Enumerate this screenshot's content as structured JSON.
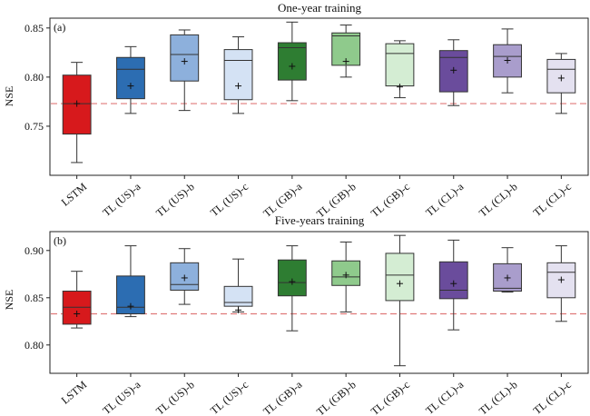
{
  "chart_data": [
    {
      "type": "box",
      "title": "One-year training",
      "panel_label": "(a)",
      "ylabel": "NSE",
      "xlabel": "",
      "ylim": [
        0.7,
        0.86
      ],
      "yticks": [
        0.75,
        0.8,
        0.85
      ],
      "ytick_labels": [
        "0.75",
        "0.80",
        "0.85"
      ],
      "grid": false,
      "reference_line": {
        "value": 0.773,
        "style": "dashed",
        "color": "#e07a7a"
      },
      "categories": [
        "LSTM",
        "TL (US)-a",
        "TL (US)-b",
        "TL (US)-c",
        "TL (GB)-a",
        "TL (GB)-b",
        "TL (GB)-c",
        "TL (CL)-a",
        "TL (CL)-b",
        "TL (CL)-c"
      ],
      "colors": [
        "#d7191c",
        "#2c6db2",
        "#8db0dc",
        "#d4e2f4",
        "#2e7d32",
        "#8fca8c",
        "#d4edd3",
        "#6a4c9c",
        "#a99dcc",
        "#e4e1f0"
      ],
      "boxes": [
        {
          "whisker_low": 0.713,
          "q1": 0.742,
          "median": 0.773,
          "q3": 0.802,
          "whisker_high": 0.815,
          "mean": 0.773
        },
        {
          "whisker_low": 0.763,
          "q1": 0.778,
          "median": 0.808,
          "q3": 0.82,
          "whisker_high": 0.831,
          "mean": 0.791
        },
        {
          "whisker_low": 0.766,
          "q1": 0.796,
          "median": 0.823,
          "q3": 0.843,
          "whisker_high": 0.848,
          "mean": 0.816
        },
        {
          "whisker_low": 0.763,
          "q1": 0.777,
          "median": 0.817,
          "q3": 0.828,
          "whisker_high": 0.841,
          "mean": 0.791
        },
        {
          "whisker_low": 0.776,
          "q1": 0.797,
          "median": 0.83,
          "q3": 0.835,
          "whisker_high": 0.856,
          "mean": 0.811
        },
        {
          "whisker_low": 0.8,
          "q1": 0.812,
          "median": 0.842,
          "q3": 0.845,
          "whisker_high": 0.853,
          "mean": 0.816
        },
        {
          "whisker_low": 0.779,
          "q1": 0.791,
          "median": 0.824,
          "q3": 0.834,
          "whisker_high": 0.837,
          "mean": 0.79
        },
        {
          "whisker_low": 0.771,
          "q1": 0.785,
          "median": 0.82,
          "q3": 0.827,
          "whisker_high": 0.838,
          "mean": 0.807
        },
        {
          "whisker_low": 0.784,
          "q1": 0.8,
          "median": 0.821,
          "q3": 0.833,
          "whisker_high": 0.849,
          "mean": 0.817
        },
        {
          "whisker_low": 0.763,
          "q1": 0.784,
          "median": 0.808,
          "q3": 0.818,
          "whisker_high": 0.824,
          "mean": 0.799
        }
      ]
    },
    {
      "type": "box",
      "title": "Five-years training",
      "panel_label": "(b)",
      "ylabel": "NSE",
      "xlabel": "",
      "ylim": [
        0.77,
        0.92
      ],
      "yticks": [
        0.8,
        0.85,
        0.9
      ],
      "ytick_labels": [
        "0.80",
        "0.85",
        "0.90"
      ],
      "grid": false,
      "reference_line": {
        "value": 0.833,
        "style": "dashed",
        "color": "#e07a7a"
      },
      "categories": [
        "LSTM",
        "TL (US)-a",
        "TL (US)-b",
        "TL (US)-c",
        "TL (GB)-a",
        "TL (GB)-b",
        "TL (GB)-c",
        "TL (CL)-a",
        "TL (CL)-b",
        "TL (CL)-c"
      ],
      "colors": [
        "#d7191c",
        "#2c6db2",
        "#8db0dc",
        "#d4e2f4",
        "#2e7d32",
        "#8fca8c",
        "#d4edd3",
        "#6a4c9c",
        "#a99dcc",
        "#e4e1f0"
      ],
      "boxes": [
        {
          "whisker_low": 0.818,
          "q1": 0.822,
          "median": 0.84,
          "q3": 0.857,
          "whisker_high": 0.878,
          "mean": 0.833
        },
        {
          "whisker_low": 0.83,
          "q1": 0.833,
          "median": 0.84,
          "q3": 0.873,
          "whisker_high": 0.905,
          "mean": 0.841
        },
        {
          "whisker_low": 0.843,
          "q1": 0.858,
          "median": 0.864,
          "q3": 0.887,
          "whisker_high": 0.902,
          "mean": 0.871
        },
        {
          "whisker_low": 0.835,
          "q1": 0.841,
          "median": 0.845,
          "q3": 0.862,
          "whisker_high": 0.891,
          "mean": 0.837
        },
        {
          "whisker_low": 0.815,
          "q1": 0.852,
          "median": 0.866,
          "q3": 0.89,
          "whisker_high": 0.905,
          "mean": 0.867
        },
        {
          "whisker_low": 0.835,
          "q1": 0.863,
          "median": 0.872,
          "q3": 0.889,
          "whisker_high": 0.909,
          "mean": 0.874
        },
        {
          "whisker_low": 0.778,
          "q1": 0.847,
          "median": 0.874,
          "q3": 0.897,
          "whisker_high": 0.916,
          "mean": 0.865
        },
        {
          "whisker_low": 0.816,
          "q1": 0.849,
          "median": 0.858,
          "q3": 0.888,
          "whisker_high": 0.911,
          "mean": 0.865
        },
        {
          "whisker_low": 0.856,
          "q1": 0.857,
          "median": 0.86,
          "q3": 0.886,
          "whisker_high": 0.903,
          "mean": 0.871
        },
        {
          "whisker_low": 0.825,
          "q1": 0.85,
          "median": 0.877,
          "q3": 0.887,
          "whisker_high": 0.905,
          "mean": 0.869
        }
      ]
    }
  ]
}
